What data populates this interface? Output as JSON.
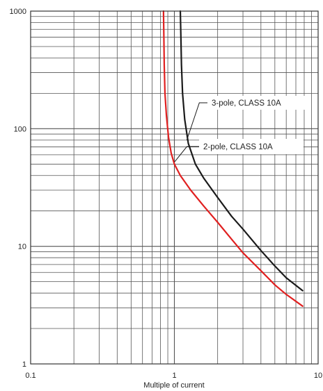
{
  "chart_data": {
    "type": "line",
    "title": "",
    "xlabel": "Multiple of current",
    "ylabel": "",
    "x_scale": "log",
    "y_scale": "log",
    "xlim": [
      0.1,
      10
    ],
    "ylim": [
      1,
      1000
    ],
    "grid": true,
    "x_ticks": [
      {
        "value": 0.1,
        "label": "0.1"
      },
      {
        "value": 1,
        "label": "1"
      },
      {
        "value": 10,
        "label": "10"
      }
    ],
    "y_ticks": [
      {
        "value": 1,
        "label": "1"
      },
      {
        "value": 10,
        "label": "10"
      },
      {
        "value": 100,
        "label": "100"
      },
      {
        "value": 1000,
        "label": "1000"
      }
    ],
    "series": [
      {
        "name": "3-pole, CLASS 10A",
        "color": "#1a1a1a",
        "x": [
          1.1,
          1.11,
          1.12,
          1.14,
          1.18,
          1.25,
          1.4,
          1.6,
          2.0,
          2.5,
          3.0,
          4.0,
          5.0,
          6.0,
          7.8
        ],
        "y": [
          1000,
          600,
          350,
          200,
          120,
          75,
          50,
          38,
          26,
          18,
          14,
          9.2,
          6.8,
          5.4,
          4.2
        ]
      },
      {
        "name": "2-pole, CLASS 10A",
        "color": "#e02020",
        "x": [
          0.84,
          0.845,
          0.85,
          0.86,
          0.88,
          0.91,
          0.95,
          1.0,
          1.1,
          1.3,
          1.6,
          2.0,
          2.5,
          3.0,
          4.0,
          5.0,
          6.0,
          7.8
        ],
        "y": [
          1000,
          600,
          350,
          200,
          130,
          85,
          62,
          50,
          40,
          30,
          22,
          16,
          11.5,
          8.8,
          6.2,
          4.7,
          3.9,
          3.1
        ]
      }
    ],
    "annotations": [
      {
        "series": 0,
        "text": "3-pole, CLASS 10A",
        "at_x": 1.22,
        "at_y": 80
      },
      {
        "series": 1,
        "text": "2-pole, CLASS 10A",
        "at_x": 1.0,
        "at_y": 52
      }
    ]
  }
}
